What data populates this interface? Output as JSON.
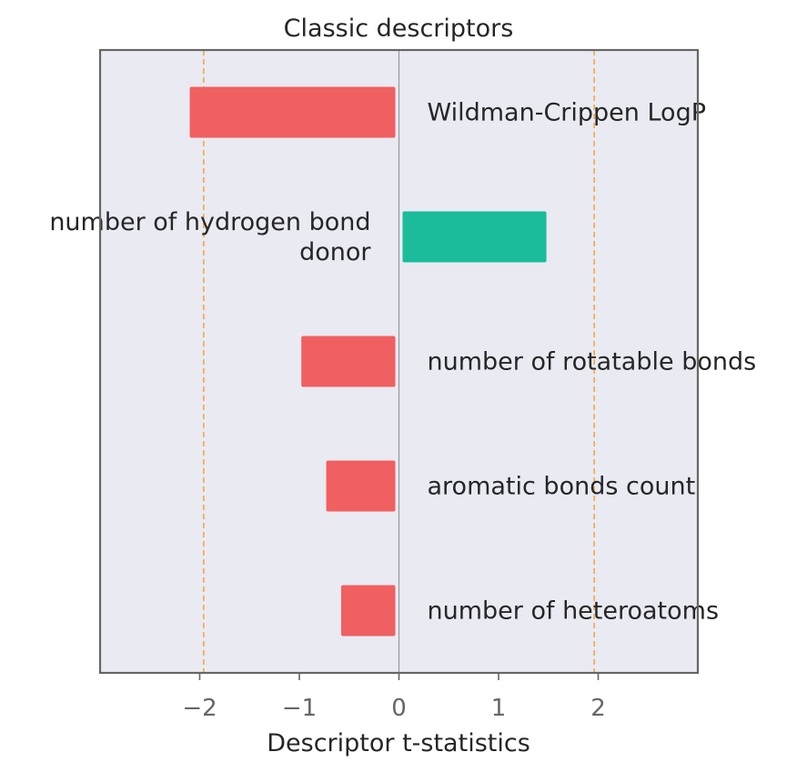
{
  "chart_data": {
    "type": "bar",
    "orientation": "horizontal",
    "title": "Classic descriptors",
    "xlabel": "Descriptor t-statistics",
    "ylabel": "",
    "xlim": [
      -3,
      3
    ],
    "xticks": [
      -2,
      -1,
      0,
      1,
      2
    ],
    "xtick_labels": [
      "−2",
      "−1",
      "0",
      "1",
      "2"
    ],
    "threshold_lines": [
      -1.96,
      1.96
    ],
    "grid": false,
    "categories": [
      "Wildman-Crippen LogP",
      "number of hydrogen bond donor",
      "number of rotatable bonds",
      "aromatic bonds count",
      "number of heteroatoms"
    ],
    "label_lines": [
      [
        "Wildman-Crippen LogP"
      ],
      [
        "number of hydrogen bond",
        "donor"
      ],
      [
        "number of rotatable bonds"
      ],
      [
        "aromatic bonds count"
      ],
      [
        "number of heteroatoms"
      ]
    ],
    "values": [
      -2.1,
      1.48,
      -0.98,
      -0.73,
      -0.58
    ],
    "colors": {
      "negative": "#f06060",
      "positive": "#1abc9c",
      "threshold": "#f5a742",
      "zero_line": "#9a9a9a",
      "plot_bg": "#e9eaf2",
      "frame": "#666666",
      "text": "#262626",
      "tick_text": "#666666"
    }
  }
}
